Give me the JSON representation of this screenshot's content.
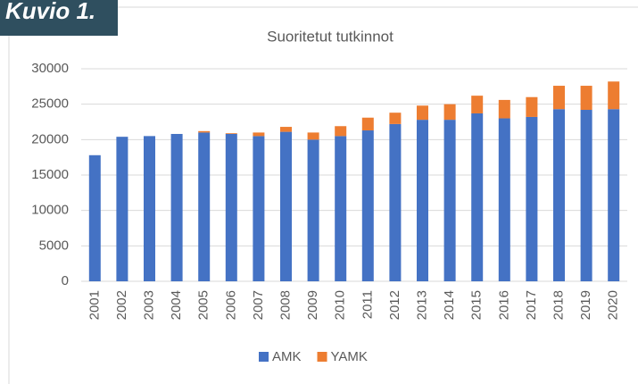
{
  "figure_label": "Kuvio 1.",
  "chart_data": {
    "type": "stacked_bar",
    "title": "Suoritetut tutkinnot",
    "categories": [
      "2001",
      "2002",
      "2003",
      "2004",
      "2005",
      "2006",
      "2007",
      "2008",
      "2009",
      "2010",
      "2011",
      "2012",
      "2013",
      "2014",
      "2015",
      "2016",
      "2017",
      "2018",
      "2019",
      "2020"
    ],
    "series": [
      {
        "name": "AMK",
        "color": "#4472c4",
        "values": [
          17800,
          20400,
          20500,
          20800,
          21000,
          20800,
          20500,
          21100,
          20000,
          20500,
          21300,
          22200,
          22800,
          22800,
          23700,
          23000,
          23200,
          24300,
          24200,
          24300
        ]
      },
      {
        "name": "YAMK",
        "color": "#ed7d31",
        "values": [
          0,
          0,
          0,
          0,
          200,
          100,
          500,
          700,
          1000,
          1400,
          1800,
          1600,
          2000,
          2200,
          2500,
          2600,
          2800,
          3300,
          3400,
          3900
        ]
      }
    ],
    "ylim": [
      0,
      30000
    ],
    "yticks": [
      0,
      5000,
      10000,
      15000,
      20000,
      25000,
      30000
    ],
    "grid": true,
    "legend": "bottom"
  }
}
